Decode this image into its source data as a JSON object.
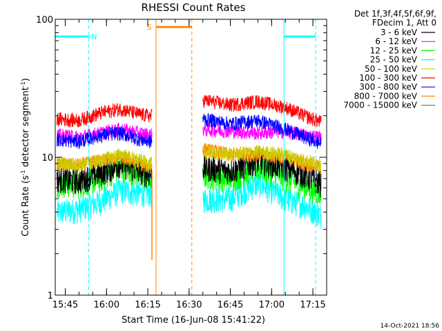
{
  "chart_data": {
    "type": "line",
    "title": "RHESSI Count Rates",
    "xlabel": "Start Time (16-Jun-08 15:41:22)",
    "ylabel": {
      "prefix": "Count Rate (s",
      "sup1": "-1",
      "middle": " detector segment",
      "sup2": "-1",
      "suffix": ")"
    },
    "y_scale": "log",
    "ylim": [
      1,
      100
    ],
    "y_ticks": [
      {
        "value": 1,
        "label": "1"
      },
      {
        "value": 10,
        "label": "10"
      },
      {
        "value": 100,
        "label": "100"
      }
    ],
    "xlim": [
      "15:41:22",
      "17:20:00"
    ],
    "x_ticks": [
      {
        "value": "15:45",
        "label": "15:45"
      },
      {
        "value": "16:00",
        "label": "16:00"
      },
      {
        "value": "16:15",
        "label": "16:15"
      },
      {
        "value": "16:30",
        "label": "16:30"
      },
      {
        "value": "16:45",
        "label": "16:45"
      },
      {
        "value": "17:00",
        "label": "17:00"
      },
      {
        "value": "17:15",
        "label": "17:15"
      }
    ],
    "grid": false,
    "legend_placement": "right",
    "legend_header": [
      "Det 1f,3f,4f,5f,6f,9f,",
      "FDecim 1, Att 0"
    ],
    "gaps": [
      [
        "16:16:30",
        "16:35:00"
      ]
    ],
    "series": [
      {
        "name": "3 - 6 keV",
        "color": "#000000",
        "x": [
          "15:42",
          "15:50",
          "15:58",
          "16:05",
          "16:12",
          "16:16",
          "16:35",
          "16:45",
          "16:55",
          "17:05",
          "17:12",
          "17:18"
        ],
        "y": [
          7.0,
          6.8,
          7.8,
          9.0,
          8.0,
          7.5,
          8.5,
          8.0,
          9.5,
          8.5,
          7.5,
          6.5
        ]
      },
      {
        "name": "6 - 12 keV",
        "color": "#ff00ff",
        "x": [
          "15:42",
          "15:50",
          "15:58",
          "16:05",
          "16:12",
          "16:16",
          "16:35",
          "16:45",
          "16:55",
          "17:05",
          "17:12",
          "17:18"
        ],
        "y": [
          14.5,
          14.0,
          15.0,
          16.0,
          15.0,
          14.5,
          16.0,
          15.5,
          15.0,
          15.5,
          14.5,
          14.0
        ]
      },
      {
        "name": "12 - 25 keV",
        "color": "#00ff00",
        "x": [
          "15:42",
          "15:50",
          "15:58",
          "16:05",
          "16:12",
          "16:16",
          "16:35",
          "16:45",
          "16:55",
          "17:05",
          "17:12",
          "17:18"
        ],
        "y": [
          6.5,
          6.3,
          7.0,
          8.5,
          7.5,
          7.0,
          7.5,
          7.0,
          8.5,
          7.0,
          6.2,
          5.5
        ]
      },
      {
        "name": "25 - 50 keV",
        "color": "#00ffff",
        "x": [
          "15:42",
          "15:50",
          "15:58",
          "16:05",
          "16:12",
          "16:16",
          "16:35",
          "16:45",
          "16:55",
          "17:05",
          "17:12",
          "17:18"
        ],
        "y": [
          4.0,
          4.2,
          4.8,
          5.8,
          5.5,
          5.5,
          5.0,
          5.0,
          6.5,
          5.0,
          4.5,
          3.8
        ]
      },
      {
        "name": "50 - 100 keV",
        "color": "#cccc00",
        "x": [
          "15:42",
          "15:50",
          "15:58",
          "16:05",
          "16:12",
          "16:16",
          "16:35",
          "16:45",
          "16:55",
          "17:05",
          "17:12",
          "17:18"
        ],
        "y": [
          9.0,
          8.8,
          9.5,
          10.5,
          9.5,
          9.0,
          11.0,
          10.5,
          11.0,
          10.5,
          9.5,
          9.0
        ]
      },
      {
        "name": "100 - 300 keV",
        "color": "#ff0000",
        "x": [
          "15:42",
          "15:50",
          "15:58",
          "16:05",
          "16:12",
          "16:16",
          "16:35",
          "16:45",
          "16:55",
          "17:05",
          "17:12",
          "17:18"
        ],
        "y": [
          19.0,
          18.5,
          21.0,
          22.5,
          20.5,
          20.0,
          26.0,
          24.0,
          25.5,
          23.0,
          20.0,
          18.0
        ]
      },
      {
        "name": "300 - 800 keV",
        "color": "#0000ff",
        "x": [
          "15:42",
          "15:50",
          "15:58",
          "16:05",
          "16:12",
          "16:16",
          "16:35",
          "16:45",
          "16:55",
          "17:05",
          "17:12",
          "17:18"
        ],
        "y": [
          13.5,
          13.0,
          14.5,
          15.0,
          13.5,
          13.0,
          19.0,
          17.5,
          18.5,
          16.0,
          14.0,
          12.5
        ]
      },
      {
        "name": "800 - 7000 keV",
        "color": "#ff8800",
        "x": [
          "15:42",
          "15:50",
          "15:58",
          "16:05",
          "16:12",
          "16:16",
          "16:35",
          "16:45",
          "16:55",
          "17:05",
          "17:12",
          "17:18"
        ],
        "y": [
          9.0,
          8.8,
          9.5,
          10.0,
          9.0,
          8.5,
          11.5,
          10.5,
          10.5,
          10.0,
          9.0,
          8.5
        ]
      },
      {
        "name": "7000 - 15000 keV",
        "color": "#6b8e23",
        "x": [],
        "y": []
      }
    ],
    "annotations": {
      "intervals": [
        {
          "label": "N",
          "color": "#00ffff",
          "level": 75,
          "start": "15:41:22",
          "end": "15:53:30",
          "edge_solid": "15:41:22",
          "edge_dashed": "15:53:30"
        },
        {
          "label": "",
          "color": "#00ffff",
          "level": 75,
          "start": "17:04:30",
          "end": "17:16:00",
          "edge_solid": "17:04:30",
          "edge_dashed": "17:16:00"
        },
        {
          "label": "S",
          "color": "#ff8800",
          "level": 88,
          "start": "16:18:00",
          "end": "16:31:00",
          "edge_solid": "16:18:00",
          "edge_dashed": "16:31:00"
        }
      ],
      "spike": {
        "time": "16:16:30",
        "from": 1.8,
        "to": 8.0,
        "color": "#ff8800"
      }
    },
    "footer_stamp": "14-Oct-2021 18:56"
  }
}
